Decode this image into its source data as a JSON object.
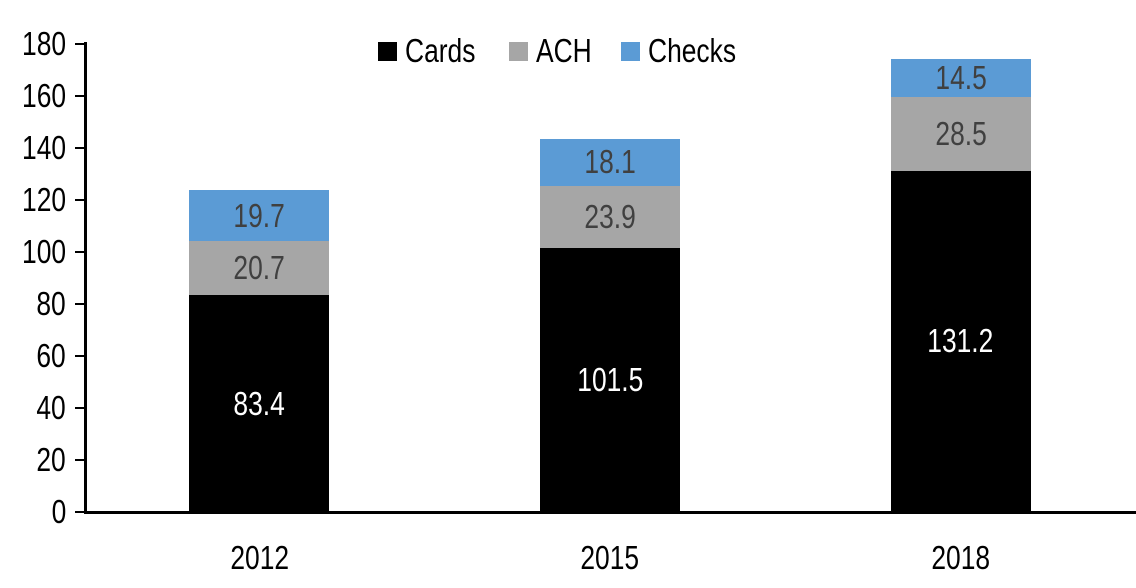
{
  "chart_data": {
    "type": "bar",
    "stacked": true,
    "categories": [
      "2012",
      "2015",
      "2018"
    ],
    "series": [
      {
        "name": "Cards",
        "color": "#000000",
        "label_color": "#FFFFFF",
        "values": [
          83.4,
          101.5,
          131.2
        ]
      },
      {
        "name": "ACH",
        "color": "#A6A6A6",
        "label_color": "#404040",
        "values": [
          20.7,
          23.9,
          28.5
        ]
      },
      {
        "name": "Checks",
        "color": "#5B9BD5",
        "label_color": "#404040",
        "values": [
          19.7,
          18.1,
          14.5
        ]
      }
    ],
    "ylim": [
      0,
      180
    ],
    "yticks": [
      0,
      20,
      40,
      60,
      80,
      100,
      120,
      140,
      160,
      180
    ],
    "grid": false,
    "legend_position": "top-center",
    "axis_color": "#000000",
    "background_color": "#FFFFFF"
  }
}
